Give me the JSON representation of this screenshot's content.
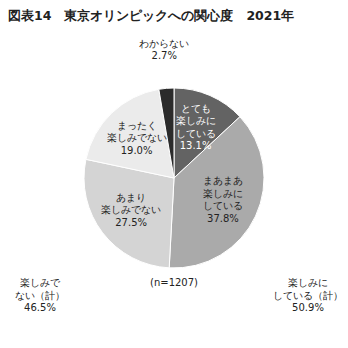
{
  "chart_data": {
    "type": "pie",
    "title": "図表14　東京オリンピックへの関心度　2021年",
    "categories": [
      "とても\n楽しみに\nしている",
      "まあまあ\n楽しみに\nしている",
      "あまり\n楽しみでない",
      "まったく\n楽しみでない",
      "わからない"
    ],
    "values": [
      13.1,
      37.8,
      27.5,
      19.0,
      2.7
    ],
    "value_labels": [
      "13.1%",
      "37.8%",
      "27.5%",
      "19.0%",
      "2.7%"
    ],
    "data_labels": true,
    "colors": [
      "#636363",
      "#aaaaaa",
      "#d4d4d4",
      "#ebebeb",
      "#2b2b2b"
    ],
    "annotations": [
      "楽しみで\nない（計）\n46.5%",
      "(n=1207)",
      "楽しみに\nしている（計）\n50.9%"
    ]
  }
}
